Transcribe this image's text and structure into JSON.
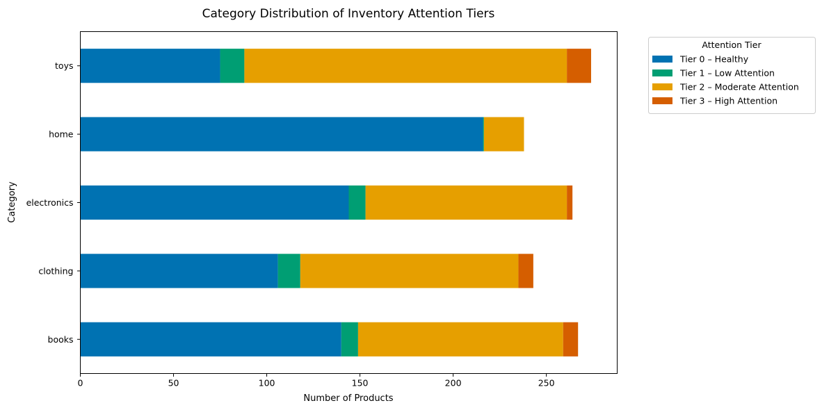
{
  "chart_data": {
    "type": "bar",
    "orientation": "horizontal",
    "stacked": true,
    "title": "Category Distribution of Inventory Attention Tiers",
    "xlabel": "Number of Products",
    "ylabel": "Category",
    "xlim": [
      0,
      288
    ],
    "xticks": [
      0,
      50,
      100,
      150,
      200,
      250
    ],
    "grid": false,
    "categories": [
      "books",
      "clothing",
      "electronics",
      "home",
      "toys"
    ],
    "series": [
      {
        "name": "Tier 0 – Healthy",
        "color": "#0072b2",
        "values": [
          140,
          106,
          144,
          216,
          75
        ]
      },
      {
        "name": "Tier 1 – Low Attention",
        "color": "#009e73",
        "values": [
          9,
          12,
          9,
          0.5,
          13
        ]
      },
      {
        "name": "Tier 2 – Moderate Attention",
        "color": "#e69f00",
        "values": [
          110,
          117,
          108,
          21.5,
          173
        ]
      },
      {
        "name": "Tier 3 – High Attention",
        "color": "#d55e00",
        "values": [
          8,
          8,
          3,
          0,
          13
        ]
      }
    ],
    "legend": {
      "title": "Attention Tier",
      "placement": "outside-top-right"
    }
  }
}
